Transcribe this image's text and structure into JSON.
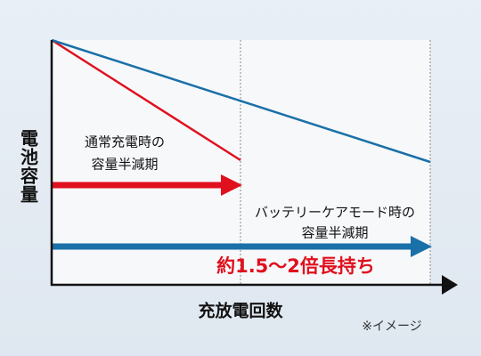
{
  "y_axis_label": "電池容量",
  "x_axis_label": "充放電回数",
  "normal": {
    "label_line1": "通常充電時の",
    "label_line2": "容量半減期"
  },
  "care_mode": {
    "label_line1": "バッテリーケアモード時の",
    "label_line2": "容量半減期"
  },
  "highlight": "約1.5～2倍長持ち",
  "note": "※イメージ"
}
